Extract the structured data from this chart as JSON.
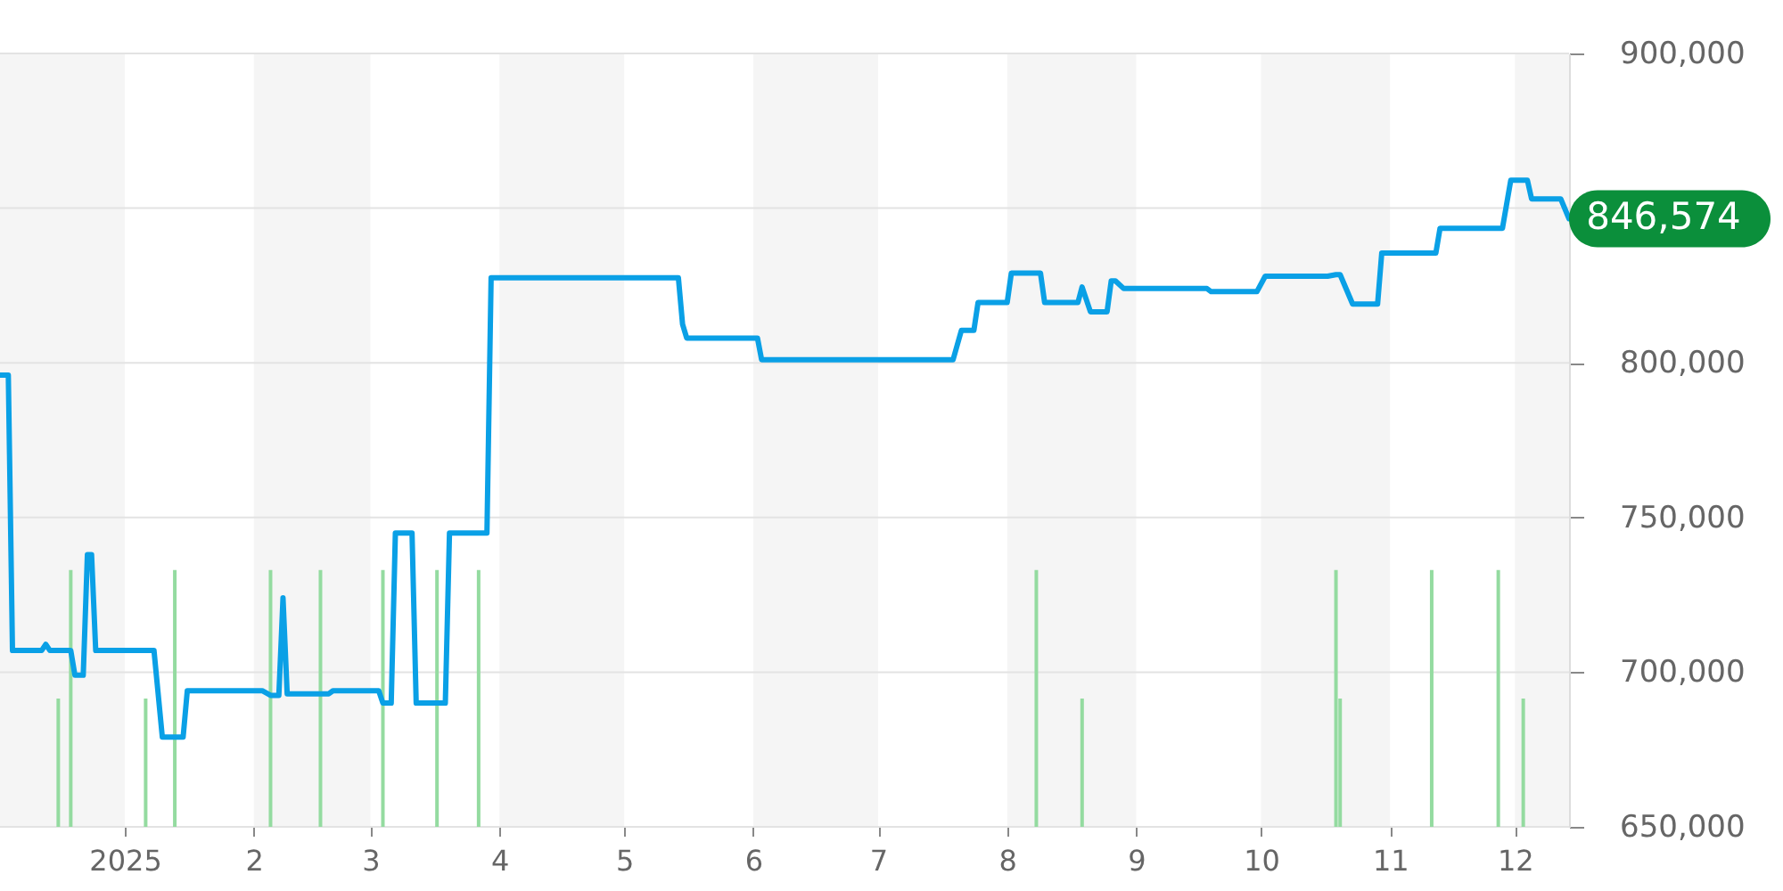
{
  "chart_data": {
    "type": "line",
    "xlim": [
      "2024-12-02",
      "2025-12-14"
    ],
    "xticks": [
      {
        "value": "2025-01-01",
        "label": "2025"
      },
      {
        "value": "2025-02-01",
        "label": "2"
      },
      {
        "value": "2025-03-01",
        "label": "3"
      },
      {
        "value": "2025-04-01",
        "label": "4"
      },
      {
        "value": "2025-05-01",
        "label": "5"
      },
      {
        "value": "2025-06-01",
        "label": "6"
      },
      {
        "value": "2025-07-01",
        "label": "7"
      },
      {
        "value": "2025-08-01",
        "label": "8"
      },
      {
        "value": "2025-09-01",
        "label": "9"
      },
      {
        "value": "2025-10-01",
        "label": "10"
      },
      {
        "value": "2025-11-01",
        "label": "11"
      },
      {
        "value": "2025-12-01",
        "label": "12"
      }
    ],
    "ylim": [
      650000,
      900000
    ],
    "yticks": [
      {
        "value": 650000,
        "label": "650,000"
      },
      {
        "value": 700000,
        "label": "700,000"
      },
      {
        "value": 750000,
        "label": "750,000"
      },
      {
        "value": 800000,
        "label": "800,000"
      },
      {
        "value": 850000,
        "label": null
      },
      {
        "value": 900000,
        "label": "900,000"
      }
    ],
    "grid": "y",
    "bands": [
      {
        "axis": "x",
        "from": "2024-12-02",
        "to": "2025-01-01",
        "color": "#f5f5f5"
      },
      {
        "axis": "x",
        "from": "2025-02-01",
        "to": "2025-03-01",
        "color": "#f5f5f5"
      },
      {
        "axis": "x",
        "from": "2025-04-01",
        "to": "2025-05-01",
        "color": "#f5f5f5"
      },
      {
        "axis": "x",
        "from": "2025-06-01",
        "to": "2025-07-01",
        "color": "#f5f5f5"
      },
      {
        "axis": "x",
        "from": "2025-08-01",
        "to": "2025-09-01",
        "color": "#f5f5f5"
      },
      {
        "axis": "x",
        "from": "2025-10-01",
        "to": "2025-11-01",
        "color": "#f5f5f5"
      },
      {
        "axis": "x",
        "from": "2025-12-01",
        "to": "2025-12-14",
        "color": "#f5f5f5"
      }
    ],
    "series": [
      {
        "type": "bar",
        "color": "#94dba0",
        "x": [
          "2024-12-16",
          "2024-12-19",
          "2025-01-06",
          "2025-01-13",
          "2025-02-05",
          "2025-02-17",
          "2025-03-04",
          "2025-03-17",
          "2025-03-27",
          "2025-08-08",
          "2025-08-19",
          "2025-10-19",
          "2025-10-20",
          "2025-11-11",
          "2025-11-27",
          "2025-12-03"
        ],
        "values": [
          691500,
          733000,
          691500,
          733000,
          733000,
          733000,
          733000,
          733000,
          733000,
          733000,
          691500,
          733000,
          691500,
          733000,
          733000,
          691500
        ]
      },
      {
        "color": "#0aa0e6",
        "x": [
          "2024-12-02",
          "2024-12-04",
          "2024-12-05",
          "2024-12-12",
          "2024-12-13",
          "2024-12-14",
          "2024-12-19",
          "2024-12-20",
          "2024-12-22",
          "2024-12-23",
          "2024-12-24",
          "2024-12-25",
          "2025-01-08",
          "2025-01-10",
          "2025-01-15",
          "2025-01-16",
          "2025-02-03",
          "2025-02-05",
          "2025-02-07",
          "2025-02-08",
          "2025-02-09",
          "2025-02-19",
          "2025-02-20",
          "2025-03-03",
          "2025-03-04",
          "2025-03-06",
          "2025-03-07",
          "2025-03-11",
          "2025-03-12",
          "2025-03-19",
          "2025-03-20",
          "2025-03-29",
          "2025-03-30",
          "2025-05-14",
          "2025-05-15",
          "2025-05-16",
          "2025-06-02",
          "2025-06-03",
          "2025-07-19",
          "2025-07-21",
          "2025-07-24",
          "2025-07-25",
          "2025-08-01",
          "2025-08-02",
          "2025-08-09",
          "2025-08-10",
          "2025-08-18",
          "2025-08-19",
          "2025-08-21",
          "2025-08-25",
          "2025-08-26",
          "2025-08-27",
          "2025-08-29",
          "2025-09-18",
          "2025-09-19",
          "2025-09-30",
          "2025-10-02",
          "2025-10-17",
          "2025-10-19",
          "2025-10-20",
          "2025-10-23",
          "2025-10-29",
          "2025-10-30",
          "2025-11-12",
          "2025-11-13",
          "2025-11-28",
          "2025-11-30",
          "2025-12-04",
          "2025-12-05",
          "2025-12-12",
          "2025-12-14"
        ],
        "values": [
          796000,
          796000,
          707000,
          707000,
          709000,
          707000,
          707000,
          699000,
          699000,
          738000,
          738000,
          707000,
          707000,
          679000,
          679000,
          694000,
          694000,
          692500,
          692500,
          724000,
          693000,
          693000,
          694000,
          694000,
          690000,
          690000,
          745000,
          745000,
          690000,
          690000,
          745000,
          745000,
          827500,
          827500,
          812500,
          808000,
          808000,
          801000,
          801000,
          810500,
          810500,
          819500,
          819500,
          829000,
          829000,
          819500,
          819500,
          824500,
          816500,
          816500,
          826500,
          826500,
          824000,
          824000,
          823000,
          823000,
          828000,
          828000,
          828500,
          828500,
          819000,
          819000,
          835500,
          835500,
          843500,
          843500,
          859000,
          859000,
          853000,
          853000,
          846574
        ]
      }
    ],
    "annotations": [
      {
        "text": "846,574",
        "x": "2025-12-14",
        "y": 846574
      }
    ]
  }
}
